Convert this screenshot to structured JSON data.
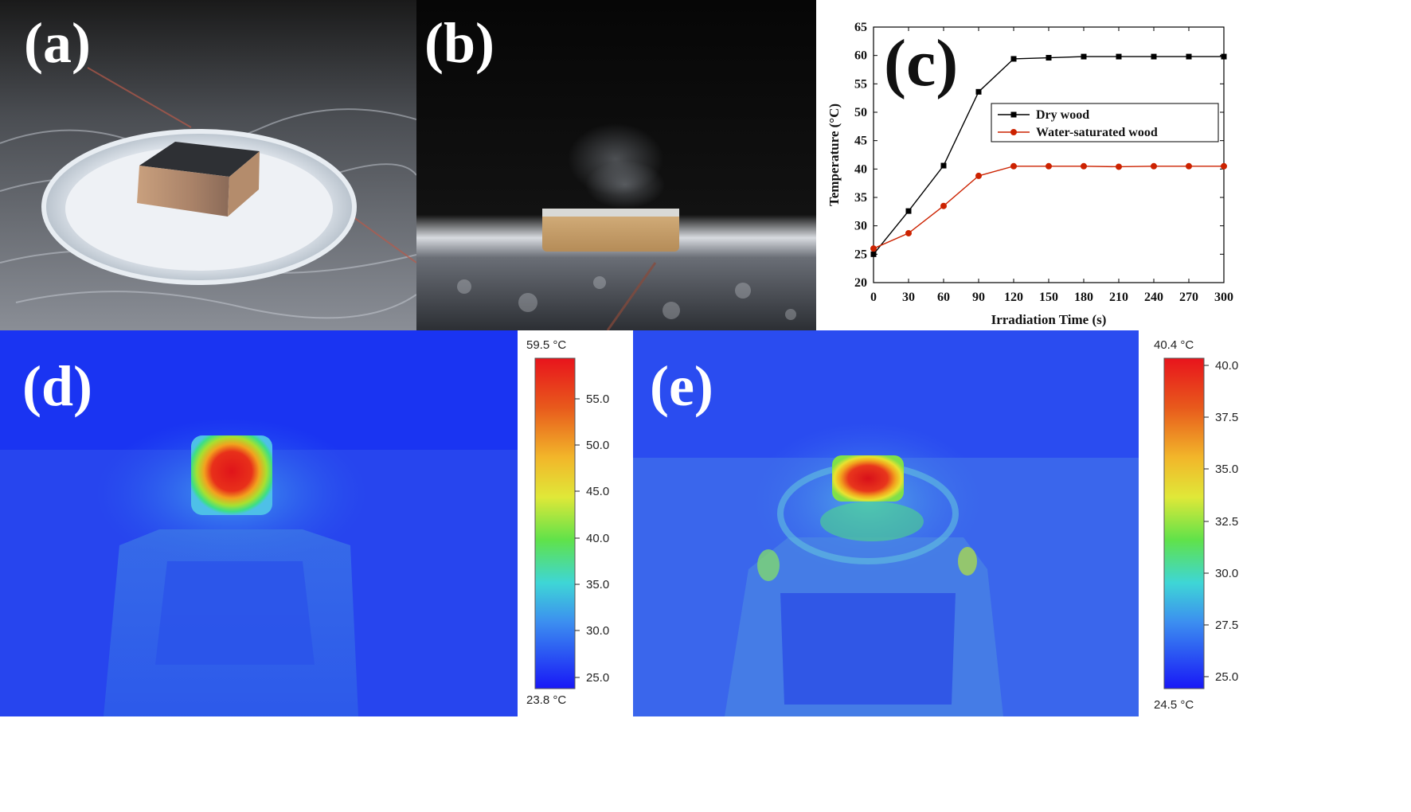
{
  "panels": {
    "a": {
      "label": "(a)"
    },
    "b": {
      "label": "(b)"
    },
    "c": {
      "label": "(c)"
    },
    "d": {
      "label": "(d)",
      "colorbar": {
        "max_label": "59.5 °C",
        "min_label": "23.8 °C",
        "ticks": [
          "55.0",
          "50.0",
          "45.0",
          "40.0",
          "35.0",
          "30.0",
          "25.0"
        ]
      }
    },
    "e": {
      "label": "(e)",
      "colorbar": {
        "max_label": "40.4 °C",
        "min_label": "24.5 °C",
        "ticks": [
          "40.0",
          "37.5",
          "35.0",
          "32.5",
          "30.0",
          "27.5",
          "25.0"
        ]
      }
    }
  },
  "chart_data": {
    "type": "line",
    "xlabel": "Irradiation Time (s)",
    "ylabel": "Temperature (°C)",
    "xlim": [
      0,
      300
    ],
    "ylim": [
      20,
      65
    ],
    "xticks": [
      "0",
      "30",
      "60",
      "90",
      "120",
      "150",
      "180",
      "210",
      "240",
      "270",
      "300"
    ],
    "yticks": [
      "20",
      "25",
      "30",
      "35",
      "40",
      "45",
      "50",
      "55",
      "60",
      "65"
    ],
    "x": [
      0,
      30,
      60,
      90,
      120,
      150,
      180,
      210,
      240,
      270,
      300
    ],
    "series": [
      {
        "name": "Dry wood",
        "color": "#000000",
        "marker": "square",
        "values": [
          25.0,
          32.6,
          40.6,
          53.6,
          59.4,
          59.6,
          59.8,
          59.8,
          59.8,
          59.8,
          59.8
        ]
      },
      {
        "name": "Water-saturated wood",
        "color": "#cc2200",
        "marker": "circle",
        "values": [
          26.0,
          28.7,
          33.5,
          38.8,
          40.5,
          40.5,
          40.5,
          40.4,
          40.5,
          40.5,
          40.5
        ]
      }
    ],
    "legend": "top-right"
  }
}
